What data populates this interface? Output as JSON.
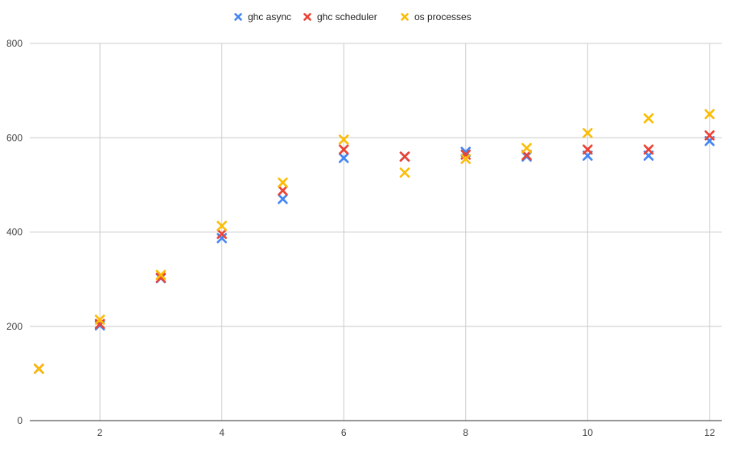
{
  "chart_data": {
    "type": "scatter",
    "title": "",
    "xlabel": "",
    "ylabel": "",
    "xlim": [
      0.85,
      12.2
    ],
    "ylim": [
      0,
      800
    ],
    "x_ticks": [
      2,
      4,
      6,
      8,
      10,
      12
    ],
    "y_ticks": [
      0,
      200,
      400,
      600,
      800
    ],
    "x_tick_labels": [
      "2",
      "4",
      "6",
      "8",
      "10",
      "12"
    ],
    "y_tick_labels": [
      "0",
      "200",
      "400",
      "600",
      "800"
    ],
    "grid": true,
    "legend_position": "top-center",
    "marker": "x",
    "x": [
      1,
      2,
      3,
      4,
      5,
      6,
      7,
      8,
      9,
      10,
      11,
      12
    ],
    "series": [
      {
        "name": "ghc async",
        "color": "#4285f4",
        "values": [
          110,
          202,
          302,
          387,
          470,
          557,
          560,
          570,
          560,
          562,
          562,
          593
        ]
      },
      {
        "name": "ghc scheduler",
        "color": "#ea4335",
        "values": [
          110,
          205,
          303,
          396,
          488,
          575,
          560,
          564,
          563,
          575,
          575,
          605
        ]
      },
      {
        "name": "os processes",
        "color": "#fbbc04",
        "values": [
          110,
          214,
          309,
          413,
          505,
          596,
          526,
          555,
          578,
          610,
          641,
          650
        ]
      }
    ]
  }
}
